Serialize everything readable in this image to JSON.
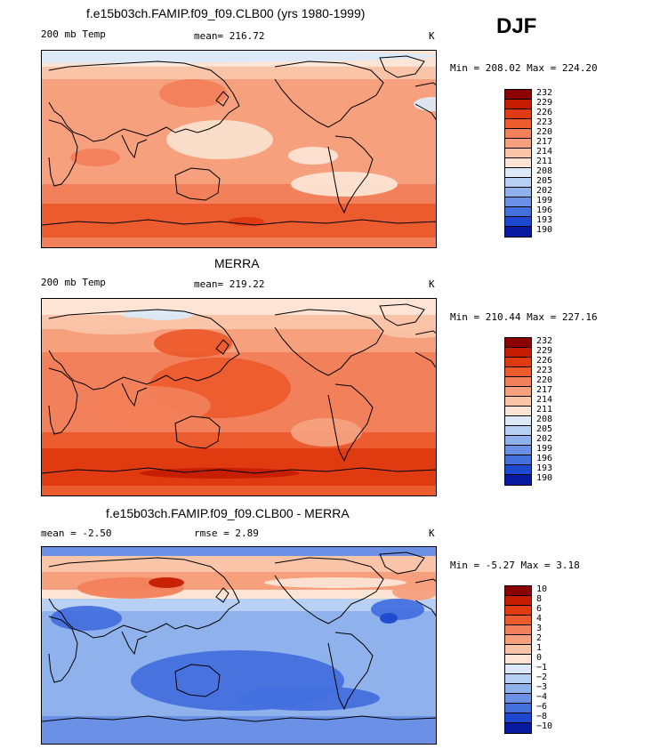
{
  "season": "DJF",
  "panels": [
    {
      "title": "f.e15b03ch.FAMIP.f09_f09.CLB00 (yrs 1980-1999)",
      "left_label": "200 mb Temp",
      "mid_label": "mean= 216.72",
      "units": "K",
      "minmax": "Min = 208.02 Max = 224.20",
      "levels": [
        "232",
        "229",
        "226",
        "223",
        "220",
        "217",
        "214",
        "211",
        "208",
        "205",
        "202",
        "199",
        "196",
        "193",
        "190"
      ],
      "colors": [
        "#8b0000",
        "#c51b00",
        "#e03a10",
        "#ec5b2d",
        "#f2805a",
        "#f6a07e",
        "#fac4a8",
        "#fde4d4",
        "#dbe9f8",
        "#b7d0f3",
        "#8fb1ec",
        "#6a91e6",
        "#4470de",
        "#1c49cf",
        "#0a1aa0"
      ],
      "style": "model"
    },
    {
      "title": "MERRA",
      "left_label": "200 mb Temp",
      "mid_label": "mean= 219.22",
      "units": "K",
      "minmax": "Min = 210.44 Max = 227.16",
      "levels": [
        "232",
        "229",
        "226",
        "223",
        "220",
        "217",
        "214",
        "211",
        "208",
        "205",
        "202",
        "199",
        "196",
        "193",
        "190"
      ],
      "colors": [
        "#8b0000",
        "#c51b00",
        "#e03a10",
        "#ec5b2d",
        "#f2805a",
        "#f6a07e",
        "#fac4a8",
        "#fde4d4",
        "#dbe9f8",
        "#b7d0f3",
        "#8fb1ec",
        "#6a91e6",
        "#4470de",
        "#1c49cf",
        "#0a1aa0"
      ],
      "style": "obs"
    },
    {
      "title": "f.e15b03ch.FAMIP.f09_f09.CLB00 - MERRA",
      "left_label": "mean =   -2.50",
      "mid_label": "rmse =    2.89",
      "units": "K",
      "minmax": "Min =  -5.27 Max =   3.18",
      "levels": [
        "10",
        "8",
        "6",
        "4",
        "3",
        "2",
        "1",
        "0",
        "−1",
        "−2",
        "−3",
        "−4",
        "−6",
        "−8",
        "−10"
      ],
      "colors": [
        "#8b0000",
        "#c51b00",
        "#e03a10",
        "#ec5b2d",
        "#f2805a",
        "#f6a07e",
        "#fac4a8",
        "#fde4d4",
        "#dbe9f8",
        "#b7d0f3",
        "#8fb1ec",
        "#6a91e6",
        "#4470de",
        "#1c49cf",
        "#0a1aa0"
      ],
      "style": "diff"
    }
  ],
  "chart_data": [
    {
      "type": "heatmap",
      "title": "f.e15b03ch.FAMIP.f09_f09.CLB00 (yrs 1980-1999)",
      "variable": "200 mb Temp",
      "units": "K",
      "mean": 216.72,
      "min": 208.02,
      "max": 224.2,
      "contour_levels": [
        190,
        193,
        196,
        199,
        202,
        205,
        208,
        211,
        214,
        217,
        220,
        223,
        226,
        229,
        232
      ]
    },
    {
      "type": "heatmap",
      "title": "MERRA",
      "variable": "200 mb Temp",
      "units": "K",
      "mean": 219.22,
      "min": 210.44,
      "max": 227.16,
      "contour_levels": [
        190,
        193,
        196,
        199,
        202,
        205,
        208,
        211,
        214,
        217,
        220,
        223,
        226,
        229,
        232
      ]
    },
    {
      "type": "heatmap",
      "title": "f.e15b03ch.FAMIP.f09_f09.CLB00 - MERRA",
      "units": "K",
      "mean": -2.5,
      "rmse": 2.89,
      "min": -5.27,
      "max": 3.18,
      "contour_levels": [
        -10,
        -8,
        -6,
        -4,
        -3,
        -2,
        -1,
        0,
        1,
        2,
        3,
        4,
        6,
        8,
        10
      ]
    }
  ]
}
